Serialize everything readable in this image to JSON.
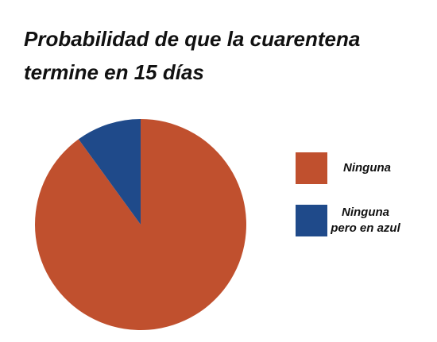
{
  "chart_data": {
    "type": "pie",
    "title": "Probabilidad de que la cuarentena termine en 15 días",
    "categories": [
      "Ninguna",
      "Ninguna pero en azul"
    ],
    "values": [
      90,
      10
    ],
    "colors": [
      "#c0502e",
      "#1f4a8a"
    ],
    "legend": "right"
  }
}
